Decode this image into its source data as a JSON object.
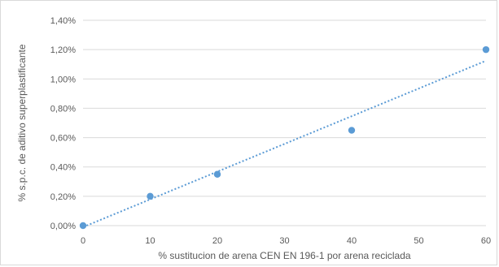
{
  "chart_data": {
    "type": "scatter",
    "title": "",
    "xlabel": "% sustitucion de arena CEN EN 196-1 por arena reciclada",
    "ylabel": "% s.p.c. de aditivo superplastificante",
    "xlim": [
      0,
      60
    ],
    "ylim": [
      0,
      0.014
    ],
    "x_ticks": [
      0,
      10,
      20,
      30,
      40,
      50,
      60
    ],
    "x_tick_labels": [
      "0",
      "10",
      "20",
      "30",
      "40",
      "50",
      "60"
    ],
    "y_ticks": [
      0,
      0.002,
      0.004,
      0.006,
      0.008,
      0.01,
      0.012,
      0.014
    ],
    "y_tick_labels": [
      "0,00%",
      "0,20%",
      "0,40%",
      "0,60%",
      "0,80%",
      "1,00%",
      "1,20%",
      "1,40%"
    ],
    "grid": "horizontal",
    "legend": "none",
    "series": [
      {
        "x": [
          0,
          10,
          20,
          40,
          60
        ],
        "y": [
          0.0,
          0.002,
          0.0035,
          0.0065,
          0.012
        ],
        "marker": "circle",
        "color": "#5b9bd5"
      }
    ],
    "trendline": {
      "type": "linear",
      "style": "dotted",
      "color": "#5b9bd5",
      "slope": 0.000189,
      "intercept": -0.0001
    }
  }
}
